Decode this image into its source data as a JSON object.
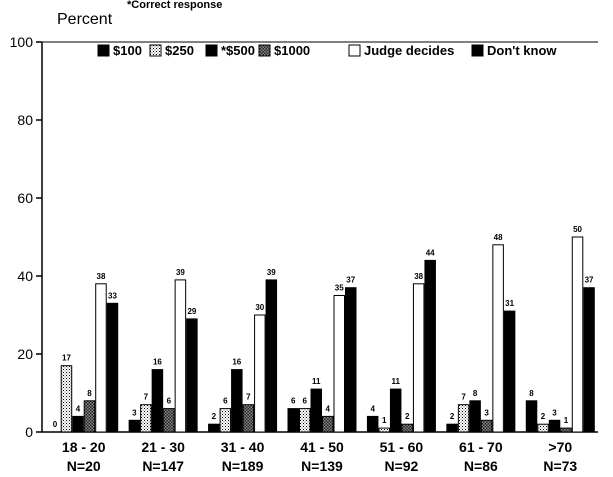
{
  "chart_data": {
    "type": "bar",
    "ylabel": "Percent",
    "note": "*Correct response",
    "ylim": [
      0,
      100
    ],
    "yticks": [
      0,
      20,
      40,
      60,
      80,
      100
    ],
    "legend_position": "top",
    "categories": [
      {
        "label": "18 - 20",
        "n": "N=20"
      },
      {
        "label": "21 - 30",
        "n": "N=147"
      },
      {
        "label": "31 - 40",
        "n": "N=189"
      },
      {
        "label": "41 - 50",
        "n": "N=139"
      },
      {
        "label": "51 - 60",
        "n": "N=92"
      },
      {
        "label": "61 - 70",
        "n": "N=86"
      },
      {
        "label": ">70",
        "n": "N=73"
      }
    ],
    "series": [
      {
        "name": "$100",
        "pattern": "solid",
        "values": [
          0,
          3,
          2,
          6,
          4,
          2,
          8
        ]
      },
      {
        "name": "$250",
        "pattern": "dots",
        "values": [
          17,
          7,
          6,
          6,
          1,
          7,
          2
        ]
      },
      {
        "name": "*$500",
        "pattern": "solid",
        "values": [
          4,
          16,
          16,
          11,
          11,
          8,
          3
        ]
      },
      {
        "name": "$1000",
        "pattern": "check",
        "values": [
          8,
          6,
          7,
          4,
          2,
          3,
          1
        ]
      },
      {
        "name": "Judge decides",
        "pattern": "open",
        "values": [
          38,
          39,
          30,
          35,
          38,
          48,
          50
        ]
      },
      {
        "name": "Don't know",
        "pattern": "solid",
        "values": [
          33,
          29,
          39,
          37,
          44,
          31,
          37
        ]
      }
    ],
    "colors": {
      "ink": "#000000",
      "paper": "#ffffff"
    }
  }
}
